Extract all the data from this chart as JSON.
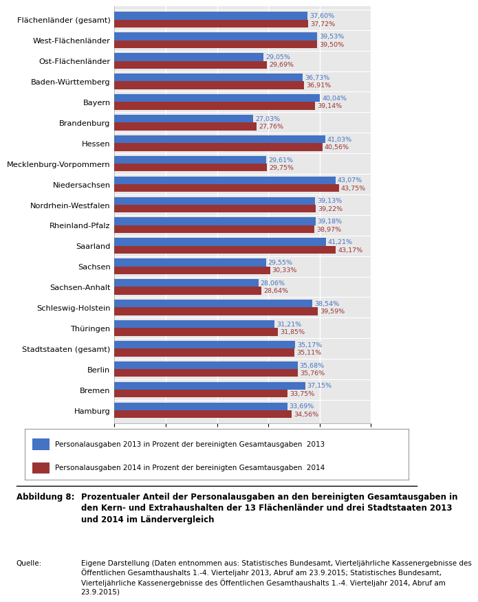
{
  "categories": [
    "Flächenländer (gesamt)",
    "West-Flächenländer",
    "Ost-Flächenländer",
    "Baden-Württemberg",
    "Bayern",
    "Brandenburg",
    "Hessen",
    "Mecklenburg-Vorpommern",
    "Niedersachsen",
    "Nordrhein-Westfalen",
    "Rheinland-Pfalz",
    "Saarland",
    "Sachsen",
    "Sachsen-Anhalt",
    "Schleswig-Holstein",
    "Thüringen",
    "Stadtstaaten (gesamt)",
    "Berlin",
    "Bremen",
    "Hamburg"
  ],
  "values_2013": [
    37.6,
    39.53,
    29.05,
    36.73,
    40.04,
    27.03,
    41.03,
    29.61,
    43.07,
    39.13,
    39.18,
    41.21,
    29.55,
    28.06,
    38.54,
    31.21,
    35.17,
    35.68,
    37.15,
    33.69
  ],
  "values_2014": [
    37.72,
    39.5,
    29.69,
    36.91,
    39.14,
    27.76,
    40.56,
    29.75,
    43.75,
    39.22,
    38.97,
    43.17,
    30.33,
    28.64,
    39.59,
    31.85,
    35.11,
    35.76,
    33.75,
    34.56
  ],
  "labels_2013": [
    "37,60%",
    "39,53%",
    "29,05%",
    "36,73%",
    "40,04%",
    "27,03%",
    "41,03%",
    "29,61%",
    "43,07%",
    "39,13%",
    "39,18%",
    "41,21%",
    "29,55%",
    "28,06%",
    "38,54%",
    "31,21%",
    "35,17%",
    "35,68%",
    "37,15%",
    "33,69%"
  ],
  "labels_2014": [
    "37,72%",
    "39,50%",
    "29,69%",
    "36,91%",
    "39,14%",
    "27,76%",
    "40,56%",
    "29,75%",
    "43,75%",
    "39,22%",
    "38,97%",
    "43,17%",
    "30,33%",
    "28,64%",
    "39,59%",
    "31,85%",
    "35,11%",
    "35,76%",
    "33,75%",
    "34,56%"
  ],
  "color_2013": "#4472C4",
  "color_2014": "#9B3333",
  "chart_bg": "#E8E8E8",
  "outer_bg": "#F2F2F2",
  "legend_2013": "Personalausgaben 2013 in Prozent der bereinigten Gesamtausgaben  2013",
  "legend_2014": "Personalausgaben 2014 in Prozent der bereinigten Gesamtausgaben  2014",
  "xlim": [
    0,
    50
  ],
  "figure_caption_label": "Abbildung 8:",
  "figure_caption_text": "Prozentualer Anteil der Personalausgaben an den bereinigten Gesamtausgaben in den Kern- und Extrahaushalten der 13 Flächenländer und drei Stadtstaaten 2013 und 2014 im Ländervergleich",
  "source_label": "Quelle:",
  "source_text": "Eigene Darstellung (Daten entnommen aus: Statistisches Bundesamt, Vierteljährliche Kassenergebnisse des Öffentlichen Gesamthaushalts 1.-4. Vierteljahr 2013, Abruf am 23.9.2015; Statistisches Bundesamt, Vierteljährliche Kassenergebnisse des Öffentlichen Gesamthaushalts 1.-4. Vierteljahr 2014, Abruf am 23.9.2015)"
}
